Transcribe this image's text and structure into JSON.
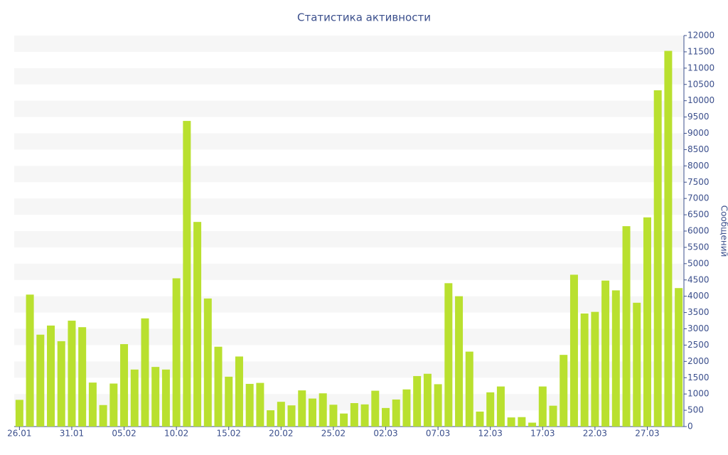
{
  "chart_data": {
    "type": "bar",
    "title": "Статистика активности",
    "y_label": "Сообщений",
    "categories": [
      "26.01",
      null,
      null,
      null,
      null,
      "31.01",
      null,
      null,
      null,
      null,
      "05.02",
      null,
      null,
      null,
      null,
      "10.02",
      null,
      null,
      null,
      null,
      "15.02",
      null,
      null,
      null,
      null,
      "20.02",
      null,
      null,
      null,
      null,
      "25.02",
      null,
      null,
      null,
      null,
      "02.03",
      null,
      null,
      null,
      null,
      "07.03",
      null,
      null,
      null,
      null,
      "12.03",
      null,
      null,
      null,
      null,
      "17.03",
      null,
      null,
      null,
      null,
      "22.03",
      null,
      null,
      null,
      null,
      "27.03",
      null,
      null,
      null
    ],
    "values": [
      820,
      4050,
      2820,
      3100,
      2620,
      3250,
      3050,
      1350,
      660,
      1320,
      2530,
      1750,
      3320,
      1830,
      1750,
      4550,
      9380,
      6280,
      3930,
      2450,
      1530,
      2150,
      1310,
      1340,
      500,
      760,
      650,
      1110,
      860,
      1020,
      670,
      400,
      720,
      680,
      1100,
      570,
      830,
      1140,
      1550,
      1620,
      1300,
      4400,
      4000,
      2300,
      460,
      1050,
      1230,
      280,
      290,
      120,
      1230,
      640,
      2200,
      4660,
      3470,
      3520,
      4480,
      4180,
      6150,
      3800,
      6420,
      10320,
      11530,
      4250
    ],
    "color": "#b9e02f",
    "ylim": [
      0,
      12000
    ],
    "yticks": [
      0,
      500,
      1000,
      1500,
      2000,
      2500,
      3000,
      3500,
      4000,
      4500,
      5000,
      5500,
      6000,
      6500,
      7000,
      7500,
      8000,
      8500,
      9000,
      9500,
      10000,
      10500,
      11000,
      11500,
      12000
    ],
    "grid": true
  }
}
